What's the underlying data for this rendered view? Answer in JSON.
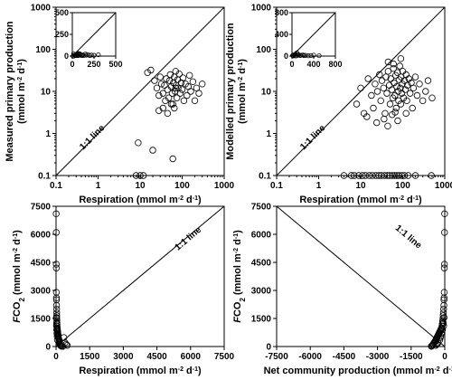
{
  "chart_data": [
    {
      "id": "a",
      "type": "scatter",
      "scale": "log",
      "xlabel": "Respiration (mmol m-2 d-1)",
      "ylabel": [
        "Measured primary production",
        "(mmol m-2 d-1)"
      ],
      "xlim": [
        0.1,
        1000
      ],
      "ylim": [
        0.1,
        1000
      ],
      "xticks": [
        "0.1",
        "1",
        "10",
        "100",
        "1000"
      ],
      "yticks": [
        "0.1",
        "1",
        "10",
        "100",
        "1000"
      ],
      "annotation": "1:1 line",
      "points": [
        [
          15,
          28
        ],
        [
          18,
          32
        ],
        [
          22,
          18
        ],
        [
          25,
          12
        ],
        [
          28,
          8
        ],
        [
          30,
          22
        ],
        [
          32,
          15
        ],
        [
          35,
          9
        ],
        [
          38,
          14
        ],
        [
          40,
          6
        ],
        [
          42,
          20
        ],
        [
          45,
          11
        ],
        [
          48,
          7
        ],
        [
          50,
          18
        ],
        [
          52,
          25
        ],
        [
          55,
          13
        ],
        [
          58,
          9
        ],
        [
          60,
          5
        ],
        [
          62,
          16
        ],
        [
          65,
          22
        ],
        [
          68,
          10
        ],
        [
          70,
          30
        ],
        [
          72,
          14
        ],
        [
          75,
          7
        ],
        [
          78,
          19
        ],
        [
          80,
          12
        ],
        [
          85,
          26
        ],
        [
          90,
          9
        ],
        [
          95,
          16
        ],
        [
          100,
          11
        ],
        [
          105,
          21
        ],
        [
          110,
          6
        ],
        [
          120,
          15
        ],
        [
          130,
          8
        ],
        [
          140,
          13
        ],
        [
          150,
          24
        ],
        [
          160,
          10
        ],
        [
          180,
          17
        ],
        [
          200,
          6
        ],
        [
          220,
          12
        ],
        [
          250,
          9
        ],
        [
          300,
          15
        ],
        [
          35,
          4
        ],
        [
          45,
          3
        ],
        [
          55,
          5
        ],
        [
          65,
          4
        ],
        [
          70,
          12
        ],
        [
          28,
          3.5
        ],
        [
          9,
          0.6
        ],
        [
          20,
          0.4
        ],
        [
          60,
          0.25
        ],
        [
          8,
          0.1
        ],
        [
          10,
          0.1
        ],
        [
          12,
          0.1
        ]
      ],
      "inset": {
        "lim": [
          0,
          500
        ],
        "xticks": [
          "0",
          "250",
          "500"
        ],
        "yticks": [
          "0",
          "250",
          "500"
        ],
        "points": [
          [
            15,
            28
          ],
          [
            25,
            12
          ],
          [
            35,
            9
          ],
          [
            45,
            11
          ],
          [
            55,
            13
          ],
          [
            65,
            22
          ],
          [
            75,
            7
          ],
          [
            85,
            26
          ],
          [
            95,
            16
          ],
          [
            110,
            6
          ],
          [
            130,
            8
          ],
          [
            150,
            24
          ],
          [
            180,
            17
          ],
          [
            220,
            12
          ],
          [
            300,
            15
          ],
          [
            50,
            18
          ],
          [
            60,
            5
          ],
          [
            70,
            30
          ],
          [
            200,
            6
          ],
          [
            250,
            9
          ],
          [
            40,
            6
          ],
          [
            120,
            15
          ],
          [
            160,
            10
          ],
          [
            8,
            0.1
          ],
          [
            20,
            0.4
          ]
        ]
      }
    },
    {
      "id": "b",
      "type": "scatter",
      "scale": "log",
      "xlabel": "Respiration (mmol m-2 d-1)",
      "ylabel": [
        "Modelled primary production",
        "(mmol m-2 d-1)"
      ],
      "xlim": [
        0.1,
        1000
      ],
      "ylim": [
        0.1,
        1000
      ],
      "xticks": [
        "0.1",
        "1",
        "10",
        "100",
        "1000"
      ],
      "yticks": [
        "0.1",
        "1",
        "10",
        "100",
        "1000"
      ],
      "annotation": "1:1 line",
      "points": [
        [
          8,
          5
        ],
        [
          10,
          12
        ],
        [
          12,
          3
        ],
        [
          15,
          20
        ],
        [
          18,
          8
        ],
        [
          20,
          4
        ],
        [
          22,
          15
        ],
        [
          25,
          10
        ],
        [
          28,
          25
        ],
        [
          30,
          6
        ],
        [
          32,
          18
        ],
        [
          35,
          12
        ],
        [
          38,
          3
        ],
        [
          40,
          22
        ],
        [
          42,
          9
        ],
        [
          45,
          30
        ],
        [
          48,
          14
        ],
        [
          50,
          5
        ],
        [
          52,
          20
        ],
        [
          55,
          11
        ],
        [
          58,
          7
        ],
        [
          60,
          35
        ],
        [
          62,
          16
        ],
        [
          65,
          8
        ],
        [
          68,
          24
        ],
        [
          70,
          4
        ],
        [
          72,
          13
        ],
        [
          75,
          28
        ],
        [
          78,
          10
        ],
        [
          80,
          6
        ],
        [
          82,
          19
        ],
        [
          85,
          40
        ],
        [
          88,
          12
        ],
        [
          90,
          5
        ],
        [
          92,
          22
        ],
        [
          95,
          9
        ],
        [
          98,
          15
        ],
        [
          100,
          30
        ],
        [
          105,
          7
        ],
        [
          110,
          18
        ],
        [
          115,
          11
        ],
        [
          120,
          25
        ],
        [
          125,
          6
        ],
        [
          130,
          14
        ],
        [
          140,
          20
        ],
        [
          150,
          9
        ],
        [
          160,
          16
        ],
        [
          170,
          4
        ],
        [
          180,
          12
        ],
        [
          200,
          22
        ],
        [
          220,
          8
        ],
        [
          250,
          15
        ],
        [
          300,
          6
        ],
        [
          350,
          10
        ],
        [
          400,
          18
        ],
        [
          500,
          7
        ],
        [
          14,
          2.5
        ],
        [
          24,
          1.8
        ],
        [
          36,
          2.2
        ],
        [
          44,
          1.5
        ],
        [
          56,
          2.8
        ],
        [
          66,
          3.2
        ],
        [
          76,
          2
        ],
        [
          120,
          3
        ],
        [
          45,
          50
        ],
        [
          60,
          45
        ],
        [
          90,
          60
        ],
        [
          4,
          0.1
        ],
        [
          6,
          0.1
        ],
        [
          7,
          0.1
        ],
        [
          9,
          0.1
        ],
        [
          11,
          0.1
        ],
        [
          13,
          0.1
        ],
        [
          16,
          0.1
        ],
        [
          19,
          0.1
        ],
        [
          23,
          0.1
        ],
        [
          27,
          0.1
        ],
        [
          31,
          0.1
        ],
        [
          37,
          0.1
        ],
        [
          43,
          0.1
        ],
        [
          49,
          0.1
        ],
        [
          57,
          0.1
        ],
        [
          64,
          0.1
        ],
        [
          72,
          0.1
        ],
        [
          81,
          0.1
        ],
        [
          95,
          0.1
        ],
        [
          110,
          0.1
        ],
        [
          135,
          0.1
        ],
        [
          200,
          0.1
        ],
        [
          480,
          0.1
        ]
      ],
      "inset": {
        "lim": [
          0,
          800
        ],
        "xticks": [
          "0",
          "400",
          "800"
        ],
        "yticks": [
          "0",
          "400",
          "800"
        ],
        "points": [
          [
            20,
            4
          ],
          [
            40,
            22
          ],
          [
            60,
            35
          ],
          [
            80,
            6
          ],
          [
            100,
            30
          ],
          [
            120,
            25
          ],
          [
            150,
            9
          ],
          [
            200,
            22
          ],
          [
            250,
            15
          ],
          [
            300,
            6
          ],
          [
            350,
            10
          ],
          [
            400,
            18
          ],
          [
            500,
            7
          ],
          [
            30,
            6
          ],
          [
            70,
            4
          ],
          [
            90,
            60
          ],
          [
            110,
            18
          ],
          [
            160,
            16
          ],
          [
            220,
            8
          ],
          [
            10,
            12
          ]
        ]
      }
    },
    {
      "id": "c",
      "type": "scatter",
      "scale": "linear",
      "xlabel": "Respiration (mmol m-2 d-1)",
      "ylabel": [
        "FCO2 (mmol m-2 d-1)"
      ],
      "xlim": [
        0,
        7500
      ],
      "ylim": [
        0,
        7500
      ],
      "xticks": [
        "0",
        "1500",
        "3000",
        "4500",
        "6000",
        "7500"
      ],
      "yticks": [
        "0",
        "1500",
        "3000",
        "4500",
        "6000",
        "7500"
      ],
      "annotation": "1:1 line",
      "points": [
        [
          5,
          7100
        ],
        [
          8,
          6100
        ],
        [
          10,
          4400
        ],
        [
          12,
          4200
        ],
        [
          15,
          2900
        ],
        [
          18,
          2600
        ],
        [
          20,
          2500
        ],
        [
          22,
          2200
        ],
        [
          25,
          2000
        ],
        [
          28,
          1800
        ],
        [
          30,
          1650
        ],
        [
          32,
          1500
        ],
        [
          35,
          1400
        ],
        [
          38,
          1300
        ],
        [
          40,
          1200
        ],
        [
          45,
          1100
        ],
        [
          50,
          1000
        ],
        [
          55,
          950
        ],
        [
          60,
          900
        ],
        [
          65,
          850
        ],
        [
          70,
          800
        ],
        [
          75,
          750
        ],
        [
          80,
          700
        ],
        [
          85,
          650
        ],
        [
          90,
          600
        ],
        [
          95,
          550
        ],
        [
          100,
          500
        ],
        [
          110,
          450
        ],
        [
          120,
          400
        ],
        [
          130,
          350
        ],
        [
          140,
          300
        ],
        [
          150,
          250
        ],
        [
          160,
          200
        ],
        [
          170,
          150
        ],
        [
          180,
          100
        ],
        [
          200,
          60
        ],
        [
          220,
          30
        ],
        [
          250,
          10
        ],
        [
          300,
          5
        ],
        [
          350,
          480
        ],
        [
          400,
          200
        ],
        [
          450,
          120
        ],
        [
          500,
          60
        ],
        [
          30,
          900
        ],
        [
          40,
          700
        ],
        [
          50,
          550
        ],
        [
          20,
          1100
        ],
        [
          60,
          350
        ],
        [
          15,
          1550
        ],
        [
          25,
          1250
        ]
      ]
    },
    {
      "id": "d",
      "type": "scatter",
      "scale": "linear",
      "xlabel": "Net community production (mmol m-2 d-1)",
      "ylabel": [
        "FCO2 (mmol m-2 d-1)"
      ],
      "xlim": [
        -7500,
        0
      ],
      "ylim": [
        0,
        7500
      ],
      "xticks": [
        "-7500",
        "-6000",
        "-4500",
        "-3000",
        "-1500",
        "0"
      ],
      "yticks": [
        "0",
        "1500",
        "3000",
        "4500",
        "6000",
        "7500"
      ],
      "annotation": "1:1 line",
      "points": [
        [
          -5,
          7100
        ],
        [
          -10,
          6100
        ],
        [
          -15,
          4400
        ],
        [
          -20,
          4200
        ],
        [
          -25,
          2900
        ],
        [
          -30,
          2600
        ],
        [
          -35,
          2500
        ],
        [
          -40,
          2200
        ],
        [
          -50,
          2000
        ],
        [
          -60,
          1800
        ],
        [
          -70,
          1650
        ],
        [
          -80,
          1500
        ],
        [
          -90,
          1400
        ],
        [
          -100,
          1300
        ],
        [
          -110,
          1200
        ],
        [
          -120,
          1100
        ],
        [
          -140,
          1000
        ],
        [
          -160,
          950
        ],
        [
          -180,
          900
        ],
        [
          -200,
          850
        ],
        [
          -220,
          800
        ],
        [
          -240,
          750
        ],
        [
          -260,
          700
        ],
        [
          -280,
          650
        ],
        [
          -300,
          600
        ],
        [
          -320,
          550
        ],
        [
          -340,
          500
        ],
        [
          -360,
          450
        ],
        [
          -380,
          400
        ],
        [
          -400,
          350
        ],
        [
          -420,
          300
        ],
        [
          -450,
          250
        ],
        [
          -480,
          200
        ],
        [
          -500,
          150
        ],
        [
          -520,
          100
        ],
        [
          -550,
          60
        ],
        [
          -580,
          30
        ],
        [
          -600,
          10
        ],
        [
          -200,
          480
        ],
        [
          -300,
          200
        ],
        [
          -350,
          120
        ],
        [
          -400,
          60
        ],
        [
          -100,
          900
        ],
        [
          -150,
          700
        ],
        [
          -180,
          550
        ],
        [
          -50,
          1100
        ],
        [
          -220,
          350
        ],
        [
          -30,
          1550
        ],
        [
          -60,
          1250
        ]
      ]
    }
  ]
}
